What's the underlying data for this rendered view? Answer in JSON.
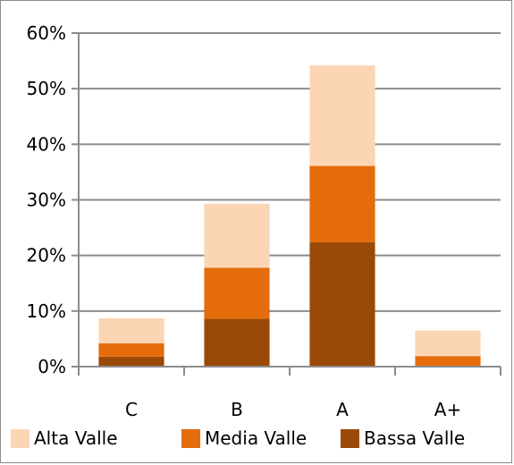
{
  "chart_data": {
    "type": "bar",
    "stacked": true,
    "title": "",
    "xlabel": "",
    "ylabel": "",
    "categories": [
      "C",
      "B",
      "A",
      "A+"
    ],
    "series": [
      {
        "name": "Bassa Valle",
        "color": "#9a4a06",
        "values": [
          1.8,
          8.6,
          22.4,
          0.0
        ]
      },
      {
        "name": "Media Valle",
        "color": "#e46c0a",
        "values": [
          2.4,
          9.2,
          13.7,
          1.9
        ]
      },
      {
        "name": "Alta Valle",
        "color": "#fcd5b5",
        "values": [
          4.5,
          11.5,
          18.1,
          4.6
        ]
      }
    ],
    "yticks": [
      "0%",
      "10%",
      "20%",
      "30%",
      "40%",
      "50%",
      "60%"
    ],
    "ylim": [
      0,
      60
    ],
    "grid": true,
    "legend": {
      "position": "bottom",
      "entries": [
        "Alta Valle",
        "Media Valle",
        "Bassa Valle"
      ]
    }
  }
}
